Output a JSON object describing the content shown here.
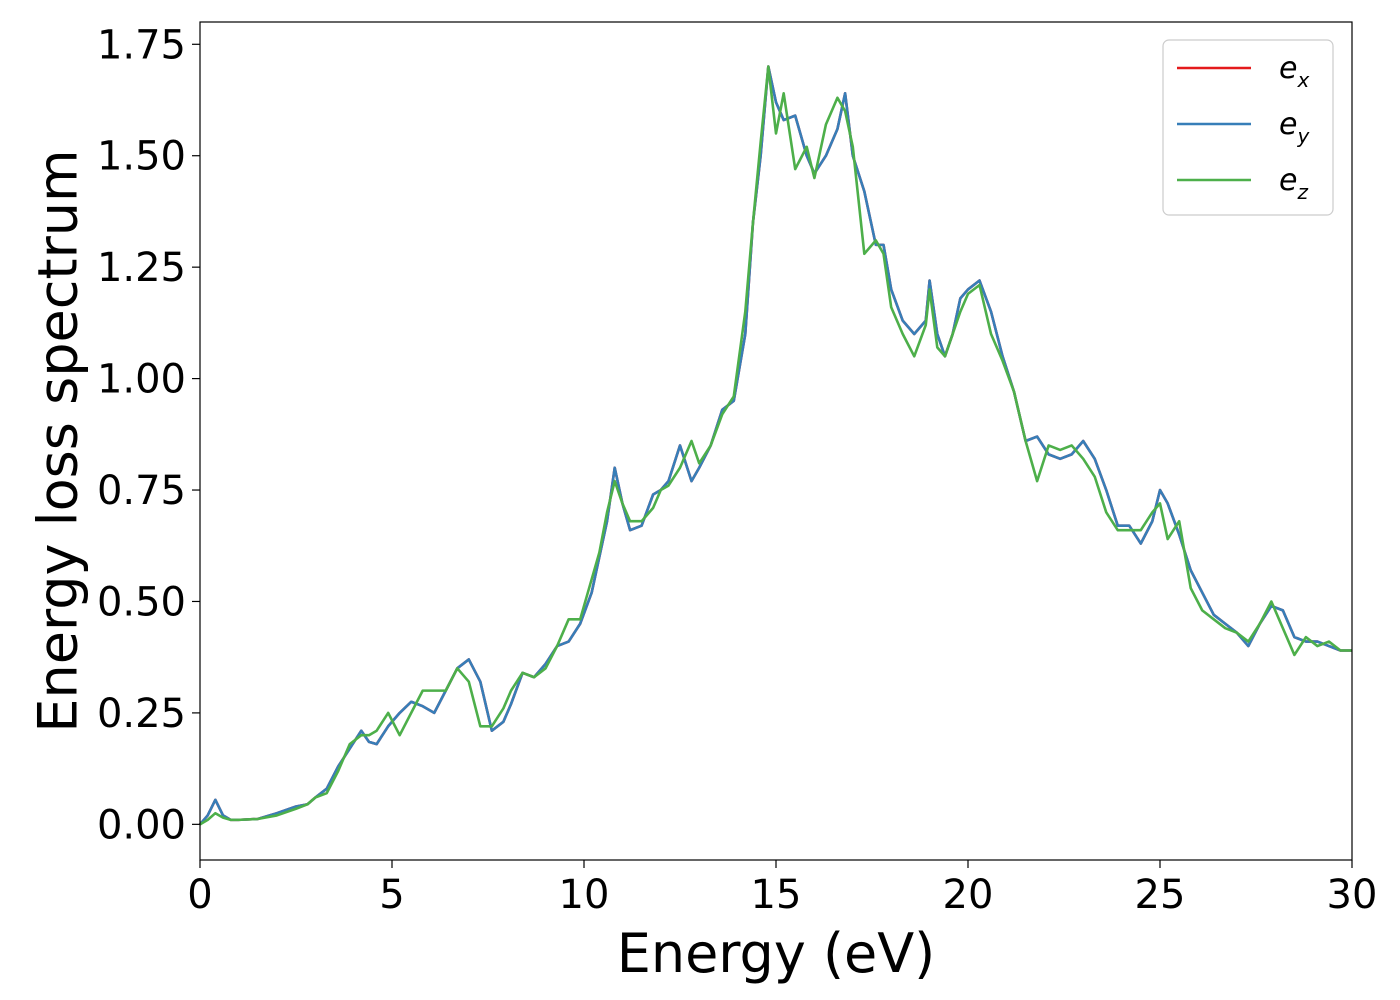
{
  "chart_data": {
    "type": "line",
    "title": "",
    "xlabel": "Energy (eV)",
    "ylabel": "Energy loss spectrum",
    "xlim": [
      0,
      30
    ],
    "ylim": [
      -0.08,
      1.8
    ],
    "xticks": [
      0,
      5,
      10,
      15,
      20,
      25,
      30
    ],
    "xtick_labels": [
      "0",
      "5",
      "10",
      "15",
      "20",
      "25",
      "30"
    ],
    "yticks": [
      0.0,
      0.25,
      0.5,
      0.75,
      1.0,
      1.25,
      1.5,
      1.75
    ],
    "ytick_labels": [
      "0.00",
      "0.25",
      "0.50",
      "0.75",
      "1.00",
      "1.25",
      "1.50",
      "1.75"
    ],
    "grid": false,
    "legend_position": "top-right",
    "series": [
      {
        "name": "e_x",
        "legend_base": "e",
        "legend_sub": "x",
        "color": "#e41a1c",
        "x": [
          0,
          0.2,
          0.4,
          0.6,
          0.8,
          1.0,
          1.5,
          2.0,
          2.5,
          2.8,
          3.0,
          3.3,
          3.6,
          3.9,
          4.2,
          4.4,
          4.6,
          4.9,
          5.2,
          5.5,
          5.8,
          6.1,
          6.4,
          6.7,
          7.0,
          7.3,
          7.6,
          7.9,
          8.1,
          8.4,
          8.7,
          9.0,
          9.3,
          9.6,
          9.9,
          10.2,
          10.4,
          10.6,
          10.8,
          11.0,
          11.2,
          11.5,
          11.8,
          12.0,
          12.2,
          12.5,
          12.8,
          13.0,
          13.3,
          13.6,
          13.9,
          14.2,
          14.4,
          14.6,
          14.8,
          15.0,
          15.2,
          15.5,
          15.8,
          16.0,
          16.3,
          16.6,
          16.8,
          17.0,
          17.3,
          17.6,
          17.8,
          18.0,
          18.3,
          18.6,
          18.9,
          19.0,
          19.2,
          19.4,
          19.6,
          19.8,
          20.0,
          20.3,
          20.6,
          20.9,
          21.2,
          21.5,
          21.8,
          22.1,
          22.4,
          22.7,
          23.0,
          23.3,
          23.6,
          23.9,
          24.2,
          24.5,
          24.8,
          25.0,
          25.2,
          25.5,
          25.8,
          26.1,
          26.4,
          26.7,
          27.0,
          27.3,
          27.6,
          27.9,
          28.2,
          28.5,
          28.8,
          29.1,
          29.4,
          29.7,
          30.0
        ],
        "y": [
          0.0,
          0.02,
          0.055,
          0.02,
          0.01,
          0.01,
          0.012,
          0.025,
          0.04,
          0.045,
          0.06,
          0.08,
          0.13,
          0.17,
          0.21,
          0.185,
          0.18,
          0.22,
          0.25,
          0.275,
          0.265,
          0.25,
          0.3,
          0.35,
          0.37,
          0.32,
          0.21,
          0.23,
          0.27,
          0.34,
          0.33,
          0.36,
          0.4,
          0.41,
          0.45,
          0.52,
          0.6,
          0.68,
          0.8,
          0.72,
          0.66,
          0.67,
          0.74,
          0.75,
          0.77,
          0.85,
          0.77,
          0.8,
          0.85,
          0.93,
          0.95,
          1.1,
          1.35,
          1.5,
          1.7,
          1.62,
          1.58,
          1.59,
          1.5,
          1.46,
          1.5,
          1.56,
          1.64,
          1.5,
          1.42,
          1.3,
          1.3,
          1.2,
          1.13,
          1.1,
          1.13,
          1.22,
          1.1,
          1.05,
          1.1,
          1.18,
          1.2,
          1.22,
          1.15,
          1.05,
          0.97,
          0.86,
          0.87,
          0.83,
          0.82,
          0.83,
          0.86,
          0.82,
          0.75,
          0.67,
          0.67,
          0.63,
          0.68,
          0.75,
          0.72,
          0.65,
          0.57,
          0.52,
          0.47,
          0.45,
          0.43,
          0.4,
          0.45,
          0.49,
          0.48,
          0.42,
          0.41,
          0.41,
          0.4,
          0.39,
          0.39
        ]
      },
      {
        "name": "e_y",
        "legend_base": "e",
        "legend_sub": "y",
        "color": "#377eb8",
        "x": [
          0,
          0.2,
          0.4,
          0.6,
          0.8,
          1.0,
          1.5,
          2.0,
          2.5,
          2.8,
          3.0,
          3.3,
          3.6,
          3.9,
          4.2,
          4.4,
          4.6,
          4.9,
          5.2,
          5.5,
          5.8,
          6.1,
          6.4,
          6.7,
          7.0,
          7.3,
          7.6,
          7.9,
          8.1,
          8.4,
          8.7,
          9.0,
          9.3,
          9.6,
          9.9,
          10.2,
          10.4,
          10.6,
          10.8,
          11.0,
          11.2,
          11.5,
          11.8,
          12.0,
          12.2,
          12.5,
          12.8,
          13.0,
          13.3,
          13.6,
          13.9,
          14.2,
          14.4,
          14.6,
          14.8,
          15.0,
          15.2,
          15.5,
          15.8,
          16.0,
          16.3,
          16.6,
          16.8,
          17.0,
          17.3,
          17.6,
          17.8,
          18.0,
          18.3,
          18.6,
          18.9,
          19.0,
          19.2,
          19.4,
          19.6,
          19.8,
          20.0,
          20.3,
          20.6,
          20.9,
          21.2,
          21.5,
          21.8,
          22.1,
          22.4,
          22.7,
          23.0,
          23.3,
          23.6,
          23.9,
          24.2,
          24.5,
          24.8,
          25.0,
          25.2,
          25.5,
          25.8,
          26.1,
          26.4,
          26.7,
          27.0,
          27.3,
          27.6,
          27.9,
          28.2,
          28.5,
          28.8,
          29.1,
          29.4,
          29.7,
          30.0
        ],
        "y": [
          0.0,
          0.02,
          0.055,
          0.02,
          0.01,
          0.01,
          0.012,
          0.025,
          0.04,
          0.045,
          0.06,
          0.08,
          0.13,
          0.17,
          0.21,
          0.185,
          0.18,
          0.22,
          0.25,
          0.275,
          0.265,
          0.25,
          0.3,
          0.35,
          0.37,
          0.32,
          0.21,
          0.23,
          0.27,
          0.34,
          0.33,
          0.36,
          0.4,
          0.41,
          0.45,
          0.52,
          0.6,
          0.68,
          0.8,
          0.72,
          0.66,
          0.67,
          0.74,
          0.75,
          0.77,
          0.85,
          0.77,
          0.8,
          0.85,
          0.93,
          0.95,
          1.1,
          1.35,
          1.5,
          1.7,
          1.62,
          1.58,
          1.59,
          1.5,
          1.46,
          1.5,
          1.56,
          1.64,
          1.5,
          1.42,
          1.3,
          1.3,
          1.2,
          1.13,
          1.1,
          1.13,
          1.22,
          1.1,
          1.05,
          1.1,
          1.18,
          1.2,
          1.22,
          1.15,
          1.05,
          0.97,
          0.86,
          0.87,
          0.83,
          0.82,
          0.83,
          0.86,
          0.82,
          0.75,
          0.67,
          0.67,
          0.63,
          0.68,
          0.75,
          0.72,
          0.65,
          0.57,
          0.52,
          0.47,
          0.45,
          0.43,
          0.4,
          0.45,
          0.49,
          0.48,
          0.42,
          0.41,
          0.41,
          0.4,
          0.39,
          0.39
        ]
      },
      {
        "name": "e_z",
        "legend_base": "e",
        "legend_sub": "z",
        "color": "#4daf4a",
        "x": [
          0,
          0.2,
          0.4,
          0.6,
          0.8,
          1.0,
          1.5,
          2.0,
          2.5,
          2.8,
          3.0,
          3.3,
          3.6,
          3.9,
          4.2,
          4.4,
          4.6,
          4.9,
          5.2,
          5.5,
          5.8,
          6.1,
          6.4,
          6.7,
          7.0,
          7.3,
          7.6,
          7.9,
          8.1,
          8.4,
          8.7,
          9.0,
          9.3,
          9.6,
          9.9,
          10.2,
          10.4,
          10.6,
          10.8,
          11.0,
          11.2,
          11.5,
          11.8,
          12.0,
          12.2,
          12.5,
          12.8,
          13.0,
          13.3,
          13.6,
          13.9,
          14.2,
          14.4,
          14.6,
          14.8,
          15.0,
          15.2,
          15.5,
          15.8,
          16.0,
          16.3,
          16.6,
          16.8,
          17.0,
          17.3,
          17.6,
          17.8,
          18.0,
          18.3,
          18.6,
          18.9,
          19.0,
          19.2,
          19.4,
          19.6,
          19.8,
          20.0,
          20.3,
          20.6,
          20.9,
          21.2,
          21.5,
          21.8,
          22.1,
          22.4,
          22.7,
          23.0,
          23.3,
          23.6,
          23.9,
          24.2,
          24.5,
          24.8,
          25.0,
          25.2,
          25.5,
          25.8,
          26.1,
          26.4,
          26.7,
          27.0,
          27.3,
          27.6,
          27.9,
          28.2,
          28.5,
          28.8,
          29.1,
          29.4,
          29.7,
          30.0
        ],
        "y": [
          0.0,
          0.01,
          0.025,
          0.015,
          0.01,
          0.01,
          0.012,
          0.02,
          0.035,
          0.045,
          0.06,
          0.07,
          0.12,
          0.18,
          0.2,
          0.2,
          0.21,
          0.25,
          0.2,
          0.25,
          0.3,
          0.3,
          0.3,
          0.35,
          0.32,
          0.22,
          0.22,
          0.26,
          0.3,
          0.34,
          0.33,
          0.35,
          0.4,
          0.46,
          0.46,
          0.55,
          0.61,
          0.7,
          0.77,
          0.72,
          0.68,
          0.68,
          0.71,
          0.75,
          0.76,
          0.8,
          0.86,
          0.81,
          0.85,
          0.92,
          0.96,
          1.15,
          1.35,
          1.53,
          1.7,
          1.55,
          1.64,
          1.47,
          1.52,
          1.45,
          1.57,
          1.63,
          1.6,
          1.52,
          1.28,
          1.31,
          1.28,
          1.16,
          1.1,
          1.05,
          1.12,
          1.2,
          1.07,
          1.05,
          1.1,
          1.15,
          1.19,
          1.21,
          1.1,
          1.04,
          0.97,
          0.86,
          0.77,
          0.85,
          0.84,
          0.85,
          0.82,
          0.78,
          0.7,
          0.66,
          0.66,
          0.66,
          0.7,
          0.72,
          0.64,
          0.68,
          0.53,
          0.48,
          0.46,
          0.44,
          0.43,
          0.41,
          0.45,
          0.5,
          0.44,
          0.38,
          0.42,
          0.4,
          0.41,
          0.39,
          0.39
        ]
      }
    ]
  }
}
